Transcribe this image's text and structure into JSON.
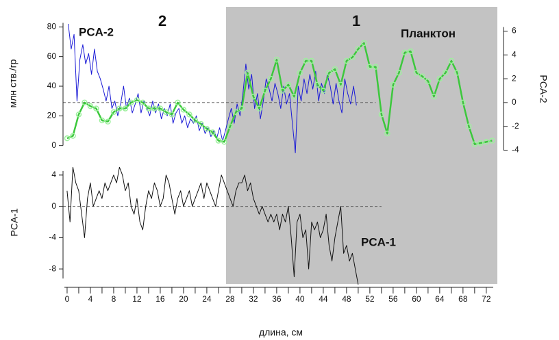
{
  "chart_data": {
    "type": "line",
    "xlabel": "длина, см",
    "xlim": [
      -0.7,
      73.9
    ],
    "xticks": [
      0,
      4,
      8,
      12,
      16,
      20,
      24,
      28,
      32,
      36,
      40,
      44,
      48,
      52,
      56,
      60,
      64,
      68,
      72
    ],
    "xminor_ticks": [
      2,
      6,
      10,
      14,
      18,
      22,
      26,
      30,
      34,
      38,
      42,
      46,
      50,
      54,
      58,
      62,
      66,
      70
    ],
    "ylabel": "млн ств./гр",
    "ylim": [
      -8,
      82
    ],
    "yticks": [
      0,
      20,
      40,
      60,
      80
    ],
    "y2label": "PCA-2",
    "y2lim": [
      -4.6,
      6.6
    ],
    "y2ticks": [
      -4,
      -2,
      0,
      2,
      4,
      6
    ],
    "y3label": "PCA-1",
    "y3lim": [
      -10,
      6
    ],
    "y3ticks": [
      -8,
      -4,
      0,
      4
    ],
    "zones": [
      {
        "label": "2",
        "range": [
          -0.7,
          27.3
        ],
        "shaded": false
      },
      {
        "label": "1",
        "range": [
          27.3,
          73.9
        ],
        "shaded": true,
        "color": "#c3c3c3"
      }
    ],
    "reference_lines": [
      {
        "axis": "y2",
        "value": 0,
        "xrange": [
          -0.7,
          53
        ]
      },
      {
        "axis": "y3",
        "value": 0,
        "xrange": [
          -0.7,
          54
        ]
      }
    ],
    "series": [
      {
        "name": "PCA-2",
        "axis": "y",
        "color": "#1a1ad6",
        "markers": false,
        "x": [
          0.2,
          0.7,
          1.2,
          1.7,
          2.2,
          2.7,
          3.2,
          3.7,
          4.2,
          4.7,
          5.2,
          5.7,
          6.2,
          6.7,
          7.2,
          7.7,
          8.2,
          8.7,
          9.2,
          9.7,
          10.2,
          10.7,
          11.2,
          11.7,
          12.2,
          12.7,
          13.2,
          13.7,
          14.2,
          14.7,
          15.2,
          15.7,
          16.2,
          16.7,
          17.2,
          17.7,
          18.2,
          18.7,
          19.2,
          19.7,
          20.2,
          20.7,
          21.2,
          21.7,
          22.2,
          22.7,
          23.2,
          23.7,
          24.2,
          24.7,
          25.2,
          25.7,
          26.2,
          26.7,
          27.2,
          27.7,
          28.2,
          28.7,
          29.2,
          29.7,
          30.2,
          30.7,
          31.2,
          31.7,
          32.2,
          32.7,
          33.2,
          33.7,
          34.2,
          34.7,
          35.2,
          35.7,
          36.2,
          36.7,
          37.2,
          37.7,
          38.2,
          38.7,
          39.2,
          39.7,
          40.2,
          40.7,
          41.2,
          41.7,
          42.2,
          42.7,
          43.2,
          43.7,
          44.2,
          44.7,
          45.2,
          45.7,
          46.2,
          46.7,
          47.2,
          47.7,
          48.2,
          48.7,
          49.2,
          49.7
        ],
        "values": [
          82,
          65,
          75,
          30,
          58,
          68,
          55,
          62,
          48,
          65,
          50,
          45,
          38,
          30,
          40,
          25,
          30,
          20,
          28,
          40,
          25,
          32,
          22,
          28,
          35,
          22,
          30,
          25,
          20,
          30,
          22,
          28,
          18,
          25,
          20,
          28,
          15,
          22,
          25,
          15,
          20,
          12,
          18,
          15,
          20,
          10,
          15,
          8,
          12,
          6,
          10,
          5,
          12,
          3,
          10,
          18,
          25,
          15,
          28,
          20,
          35,
          55,
          38,
          48,
          25,
          35,
          18,
          30,
          45,
          38,
          30,
          42,
          35,
          25,
          40,
          28,
          35,
          15,
          -5,
          40,
          30,
          45,
          35,
          48,
          38,
          50,
          30,
          42,
          35,
          48,
          40,
          28,
          42,
          30,
          22,
          45,
          35,
          28,
          40,
          27
        ]
      },
      {
        "name": "Планктон",
        "axis": "y2",
        "color": "#3cc83c",
        "markers": true,
        "x": [
          0,
          1,
          2,
          3,
          4,
          5,
          6,
          7,
          8,
          9,
          10,
          11,
          12,
          13,
          14,
          15,
          16,
          17,
          18,
          19,
          20,
          21,
          22,
          23,
          24,
          25,
          26,
          27,
          28,
          29,
          30,
          31,
          32,
          33,
          34,
          35,
          36,
          37,
          38,
          39,
          40,
          41,
          42,
          43,
          44,
          45,
          46,
          47,
          48,
          49,
          50,
          51,
          52,
          53,
          54,
          55,
          56,
          57,
          58,
          59,
          60,
          61,
          62,
          63,
          64,
          65,
          66,
          67,
          68,
          69,
          70,
          71,
          72,
          73
        ],
        "values": [
          -3,
          -2.8,
          -1,
          0,
          -0.3,
          -0.5,
          -1.5,
          -1.6,
          -0.8,
          -0.5,
          -0.5,
          0,
          0.2,
          0,
          -0.5,
          -0.5,
          -0.5,
          -0.8,
          -1,
          0,
          -0.6,
          -1,
          -1.5,
          -1.8,
          -2.2,
          -2.5,
          -3.2,
          -3.3,
          -2,
          -0.8,
          -0.5,
          2.5,
          0.5,
          -0.5,
          1,
          2,
          3.6,
          1,
          1.5,
          0.5,
          2.5,
          3.5,
          3.5,
          1.5,
          1,
          2.5,
          2.8,
          1.5,
          3.5,
          3.8,
          4.5,
          5,
          3,
          3,
          -1,
          -2.6,
          1.5,
          2.5,
          4.2,
          4.3,
          2.5,
          2.2,
          1.8,
          0.5,
          2,
          2.5,
          3.5,
          2.5,
          0,
          -2,
          -3.5,
          -3.4,
          -3.3,
          -3.2
        ]
      },
      {
        "name": "PCA-1",
        "axis": "y3",
        "color": "#111111",
        "markers": false,
        "x": [
          0,
          0.5,
          1,
          1.5,
          2,
          2.5,
          3,
          3.5,
          4,
          4.5,
          5,
          5.5,
          6,
          6.5,
          7,
          7.5,
          8,
          8.5,
          9,
          9.5,
          10,
          10.5,
          11,
          11.5,
          12,
          12.5,
          13,
          13.5,
          14,
          14.5,
          15,
          15.5,
          16,
          16.5,
          17,
          17.5,
          18,
          18.5,
          19,
          19.5,
          20,
          20.5,
          21,
          21.5,
          22,
          22.5,
          23,
          23.5,
          24,
          24.5,
          25,
          25.5,
          26,
          26.5,
          27,
          27.5,
          28,
          28.5,
          29,
          29.5,
          30,
          30.5,
          31,
          31.5,
          32,
          32.5,
          33,
          33.5,
          34,
          34.5,
          35,
          35.5,
          36,
          36.5,
          37,
          37.5,
          38,
          38.5,
          39,
          39.5,
          40,
          40.5,
          41,
          41.5,
          42,
          42.5,
          43,
          43.5,
          44,
          44.5,
          45,
          45.5,
          46,
          46.5,
          47,
          47.5,
          48,
          48.5,
          49,
          49.5,
          50
        ],
        "values": [
          2,
          -2,
          5,
          3,
          2,
          -1,
          -4,
          1,
          3,
          0,
          1,
          2,
          1,
          3,
          2,
          3,
          4,
          3,
          5,
          4,
          2,
          3,
          0,
          -1,
          1,
          -2,
          -3,
          0,
          2,
          1,
          3,
          2,
          0,
          1,
          4,
          3,
          1,
          -1,
          1,
          2,
          0,
          1,
          2,
          0,
          1,
          2,
          3,
          1,
          3,
          2,
          1,
          0,
          2,
          4,
          3,
          2,
          1,
          0,
          2,
          3,
          3,
          4,
          2,
          3,
          1,
          0,
          -1,
          0,
          -1,
          -2,
          -1,
          -2,
          -1,
          -3,
          -1,
          -2,
          0,
          -4,
          -9,
          -2,
          -1,
          -4,
          -3,
          -8,
          -2,
          -3,
          -2,
          -4,
          -3,
          -1,
          -5,
          -7,
          -4,
          -2,
          0,
          -6,
          -5,
          -7,
          -6,
          -8,
          -10
        ]
      }
    ]
  }
}
